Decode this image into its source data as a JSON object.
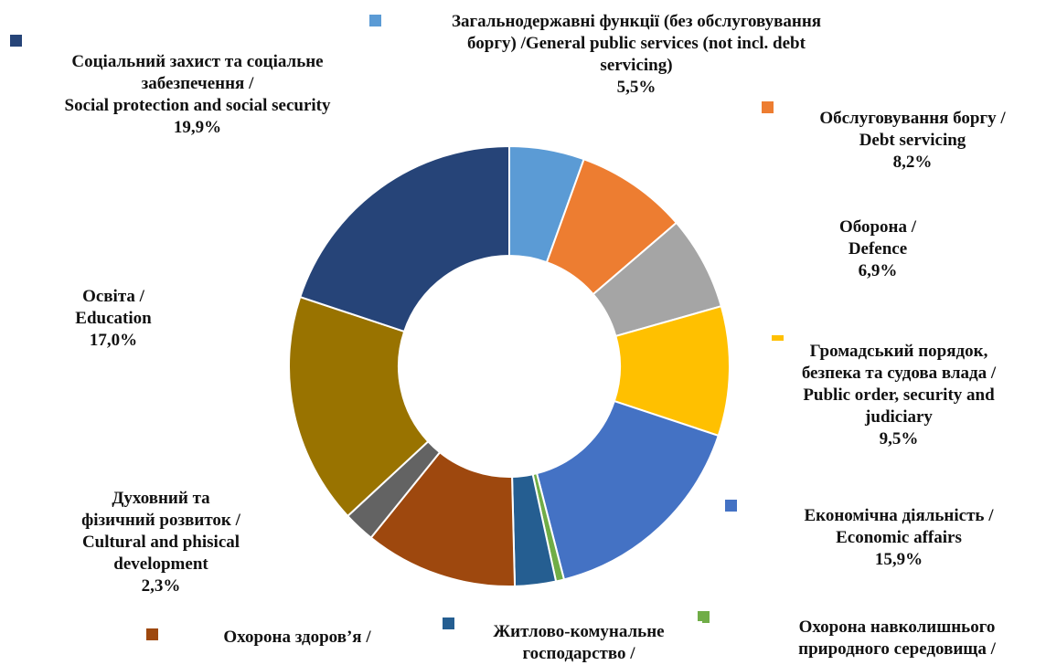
{
  "chart_data": {
    "type": "pie",
    "donut": true,
    "start_angle_deg": 0,
    "direction": "clockwise",
    "legend": "none",
    "slices": [
      {
        "key": "general",
        "lines": [
          "Загальнодержавні функції (без обслуговування",
          "боргу) /General public services (not incl. debt",
          "servicing)"
        ],
        "pct_label": "5,5%",
        "value": 5.5,
        "color": "#5b9bd5"
      },
      {
        "key": "debt",
        "lines": [
          "Обслуговування боргу /",
          "Debt servicing"
        ],
        "pct_label": "8,2%",
        "value": 8.2,
        "color": "#ed7d31"
      },
      {
        "key": "defence",
        "lines": [
          "Оборона /",
          "Defence"
        ],
        "pct_label": "6,9%",
        "value": 6.9,
        "color": "#a5a5a5"
      },
      {
        "key": "order",
        "lines": [
          "Громадський порядок,",
          "безпека та судова влада /",
          "Public order, security and",
          "judiciary"
        ],
        "pct_label": "9,5%",
        "value": 9.5,
        "color": "#ffc000"
      },
      {
        "key": "economic",
        "lines": [
          "Економічна діяльність /",
          "Economic affairs"
        ],
        "pct_label": "15,9%",
        "value": 15.9,
        "color": "#4472c4"
      },
      {
        "key": "environment",
        "lines": [
          "Охорона навколишнього",
          "природного середовища /"
        ],
        "pct_label": "",
        "value": 0.6,
        "color": "#70ad47"
      },
      {
        "key": "housing",
        "lines": [
          "Житлово-комунальне",
          "господарство /"
        ],
        "pct_label": "",
        "value": 3.0,
        "color": "#255e91"
      },
      {
        "key": "health",
        "lines": [
          "Охорона здоров’я /"
        ],
        "pct_label": "",
        "value": 11.2,
        "color": "#9e480e"
      },
      {
        "key": "culture",
        "lines": [
          "Духовний та",
          "фізичний розвиток /",
          "Cultural and phisical",
          "development"
        ],
        "pct_label": "2,3%",
        "value": 2.3,
        "color": "#636363"
      },
      {
        "key": "education",
        "lines": [
          "Освіта /",
          "Education"
        ],
        "pct_label": "17,0%",
        "value": 17.0,
        "color": "#997300"
      },
      {
        "key": "social",
        "lines": [
          "Соціальний захист та соціальне",
          "забезпечення /",
          "Social protection and social security"
        ],
        "pct_label": "19,9%",
        "value": 19.9,
        "color": "#264478"
      }
    ]
  }
}
